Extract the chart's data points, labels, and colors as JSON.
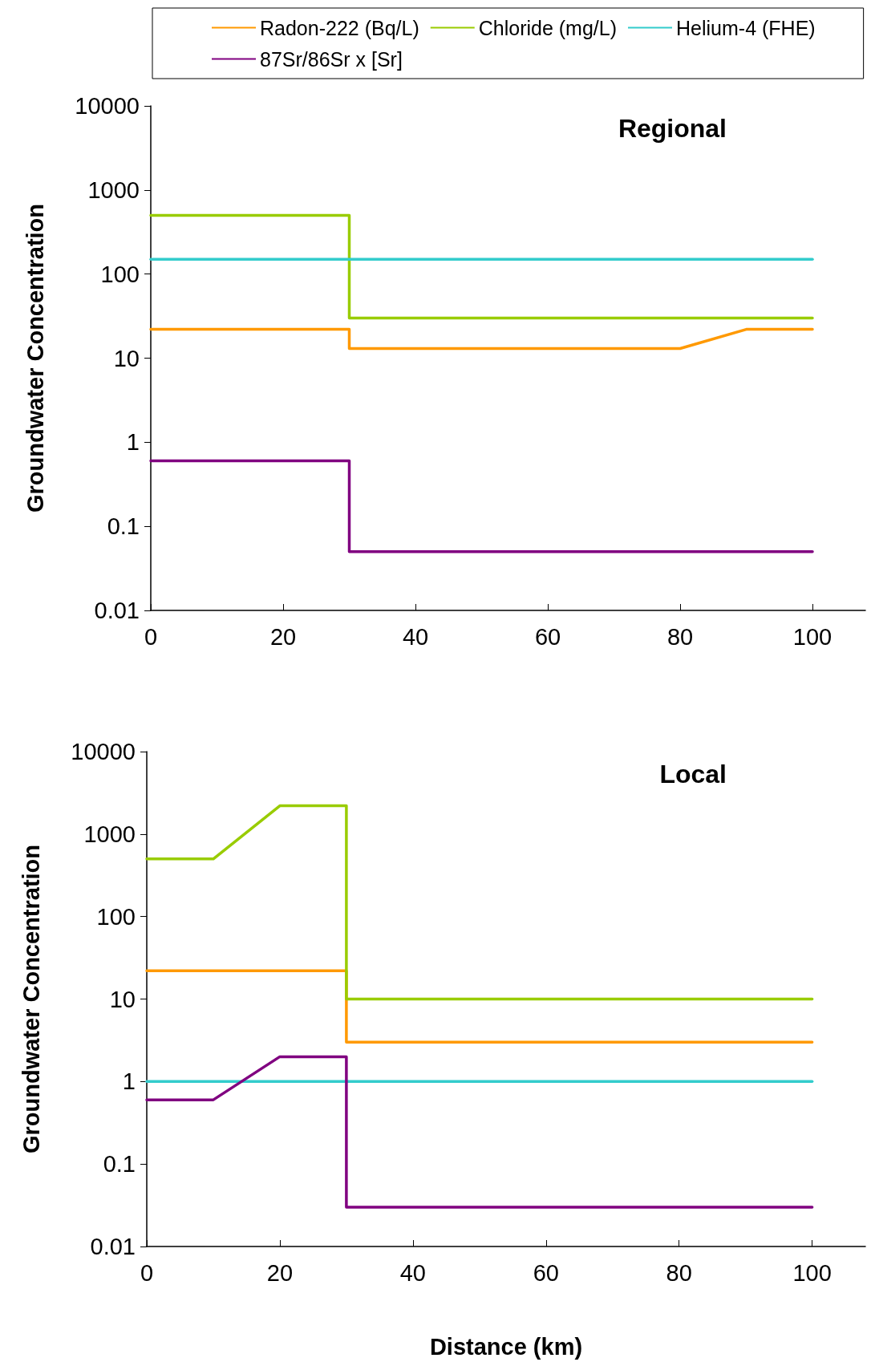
{
  "chart_data": [
    {
      "type": "line",
      "ylabel": "Groundwater Concentration",
      "annotations": [
        "Regional"
      ],
      "log": "y",
      "legend": "top",
      "grid": false,
      "marker": "none",
      "line_style": "solid",
      "xlim": [
        0,
        108
      ],
      "xticks": [
        0,
        20,
        40,
        60,
        80,
        100
      ],
      "ylim": [
        0.01,
        10000
      ],
      "yticks": [
        0.01,
        0.1,
        1,
        10,
        100,
        1000,
        10000
      ],
      "series": [
        {
          "name": "Radon-222 (Bq/L)",
          "color": "#ff9900",
          "x": [
            0,
            30,
            30,
            80,
            90,
            100
          ],
          "values": [
            22,
            22,
            13,
            13,
            22,
            22
          ]
        },
        {
          "name": "Chloride (mg/L)",
          "color": "#99cc00",
          "x": [
            0,
            30,
            30,
            100
          ],
          "values": [
            500,
            500,
            30,
            30
          ]
        },
        {
          "name": "Helium-4 (FHE)",
          "color": "#33cccc",
          "x": [
            0,
            100
          ],
          "values": [
            150,
            150
          ]
        },
        {
          "name": "87Sr/86Sr x [Sr]",
          "color": "#800080",
          "x": [
            0,
            30,
            30,
            100
          ],
          "values": [
            0.6,
            0.6,
            0.05,
            0.05
          ]
        }
      ]
    },
    {
      "type": "line",
      "xlabel": "Distance (km)",
      "ylabel": "Groundwater Concentration",
      "annotations": [
        "Local"
      ],
      "log": "y",
      "legend": false,
      "grid": false,
      "marker": "none",
      "line_style": "solid",
      "xlim": [
        0,
        108
      ],
      "xticks": [
        0,
        20,
        40,
        60,
        80,
        100
      ],
      "ylim": [
        0.01,
        10000
      ],
      "yticks": [
        0.01,
        0.1,
        1,
        10,
        100,
        1000,
        10000
      ],
      "series": [
        {
          "color": "#ff9900",
          "x": [
            0,
            30,
            30,
            100
          ],
          "values": [
            22,
            22,
            3,
            3
          ]
        },
        {
          "color": "#99cc00",
          "x": [
            0,
            10,
            20,
            30,
            30,
            100
          ],
          "values": [
            500,
            500,
            2200,
            2200,
            10,
            10
          ]
        },
        {
          "color": "#33cccc",
          "x": [
            0,
            100
          ],
          "values": [
            1,
            1
          ]
        },
        {
          "color": "#800080",
          "x": [
            0,
            10,
            20,
            30,
            30,
            100
          ],
          "values": [
            0.6,
            0.6,
            2,
            2,
            0.03,
            0.03
          ]
        }
      ]
    }
  ]
}
